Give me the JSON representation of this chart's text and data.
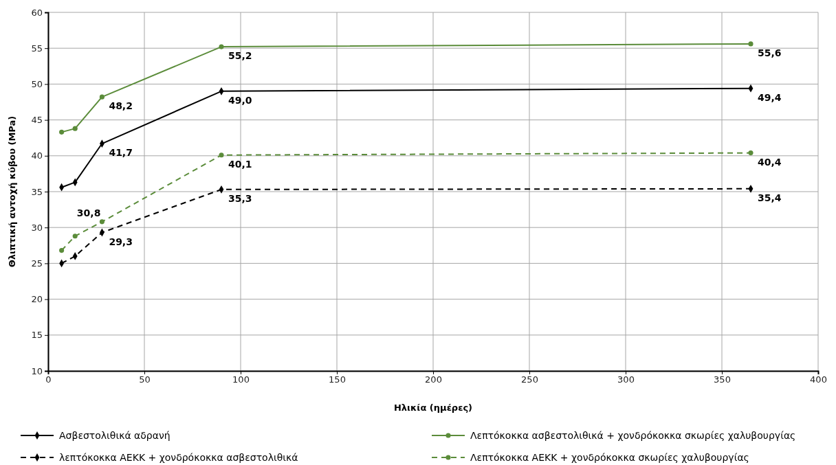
{
  "chart_data": {
    "type": "line",
    "xlabel": "Ηλικία (ημέρες)",
    "ylabel": "Θλιπτική αντοχή κύβου (MPa)",
    "x": [
      7,
      14,
      28,
      90,
      365
    ],
    "xlim": [
      0,
      400
    ],
    "xticks": [
      0,
      50,
      100,
      150,
      200,
      250,
      300,
      350,
      400
    ],
    "ylim": [
      10,
      60
    ],
    "yticks": [
      10,
      15,
      20,
      25,
      30,
      35,
      40,
      45,
      50,
      55,
      60
    ],
    "grid": true,
    "legend": "bottom",
    "series": [
      {
        "name": "Ασβεστολιθικά αδρανή",
        "color": "#000000",
        "marker": "diamond",
        "line_style": "solid",
        "values": [
          35.6,
          36.3,
          41.7,
          49.0,
          49.4
        ],
        "value_labels": [
          null,
          null,
          "41,7",
          "49,0",
          "49,4"
        ]
      },
      {
        "name": "Λεπτόκοκκα ασβεστολιθικά + χονδρόκοκκα σκωρίες χαλυβουργίας",
        "color": "#5b8c3a",
        "marker": "circle",
        "line_style": "solid",
        "values": [
          43.3,
          43.8,
          48.2,
          55.2,
          55.6
        ],
        "value_labels": [
          null,
          null,
          "48,2",
          "55,2",
          "55,6"
        ]
      },
      {
        "name": "λεπτόκοκκα ΑΕΚΚ + χονδρόκοκκα ασβεστολιθικά",
        "color": "#000000",
        "marker": "diamond",
        "line_style": "dashed",
        "values": [
          25.0,
          26.0,
          29.3,
          35.3,
          35.4
        ],
        "value_labels": [
          null,
          null,
          "29,3",
          "35,3",
          "35,4"
        ]
      },
      {
        "name": "Λεπτόκοκκα ΑΕΚΚ + χονδρόκοκκα σκωρίες χαλυβουργίας",
        "color": "#5b8c3a",
        "marker": "circle",
        "line_style": "dashed",
        "values": [
          26.8,
          28.8,
          30.8,
          40.1,
          40.4
        ],
        "value_labels": [
          null,
          null,
          "30,8",
          "40,1",
          "40,4"
        ]
      }
    ]
  }
}
